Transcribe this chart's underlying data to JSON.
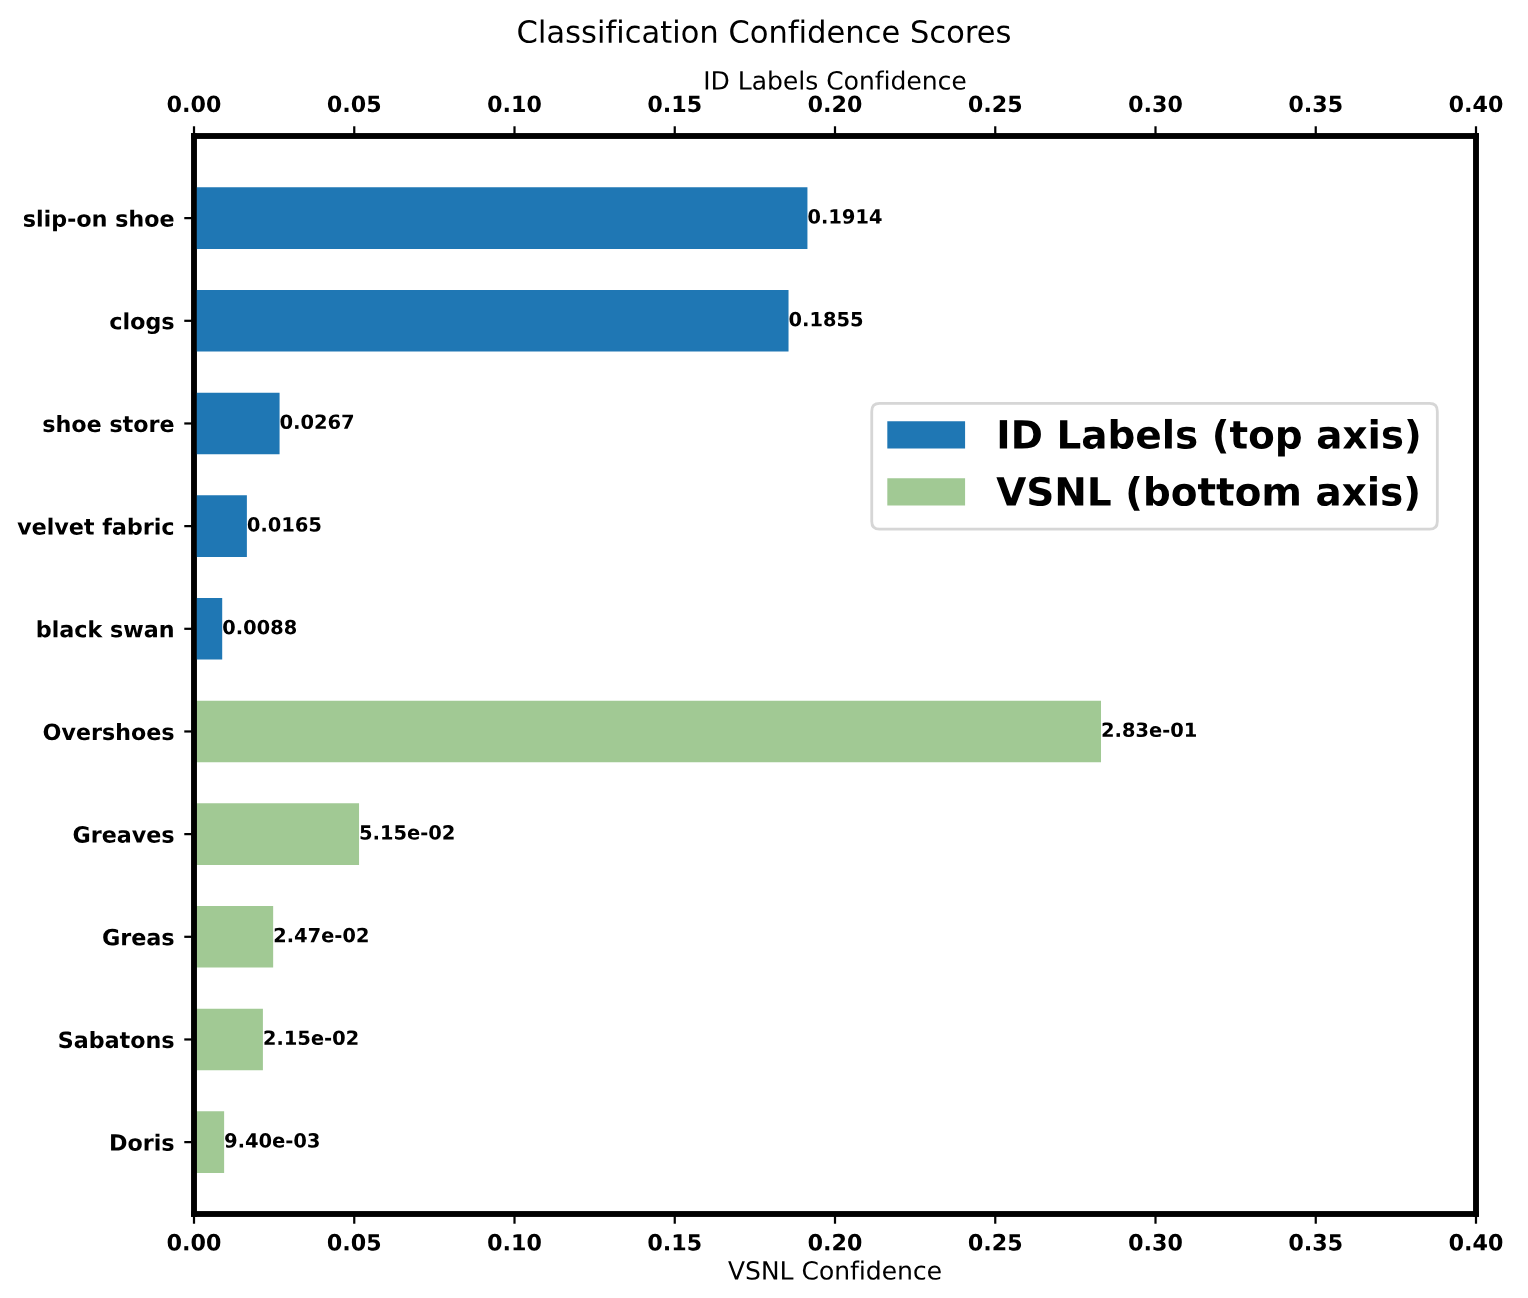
{
  "chart_data": {
    "type": "bar",
    "orientation": "horizontal",
    "title": "Classification Confidence Scores",
    "xlabel": "VSNL Confidence",
    "x2label": "ID Labels Confidence",
    "categories": [
      "slip-on shoe",
      "clogs",
      "shoe store",
      "velvet fabric",
      "black swan",
      "Overshoes",
      "Greaves",
      "Greas",
      "Sabatons",
      "Doris"
    ],
    "series": [
      {
        "name": "ID Labels (top axis)",
        "color": "#1f77b4",
        "axis": "x2",
        "values": [
          0.1914,
          0.1855,
          0.0267,
          0.0165,
          0.0088,
          null,
          null,
          null,
          null,
          null
        ],
        "value_labels": [
          "0.1914",
          "0.1855",
          "0.0267",
          "0.0165",
          "0.0088",
          null,
          null,
          null,
          null,
          null
        ]
      },
      {
        "name": "VSNL (bottom axis)",
        "color": "#a1c994",
        "values": [
          null,
          null,
          null,
          null,
          null,
          0.283,
          0.0515,
          0.0247,
          0.0215,
          0.0094
        ],
        "value_labels": [
          null,
          null,
          null,
          null,
          null,
          "2.83e-01",
          "5.15e-02",
          "2.47e-02",
          "2.15e-02",
          "9.40e-03"
        ]
      }
    ],
    "xlim": [
      0,
      0.4
    ],
    "xticks": [
      {
        "value": 0,
        "label": "0.00"
      },
      0.05,
      {
        "value": 0.1,
        "label": "0.10"
      },
      0.15,
      {
        "value": 0.2,
        "label": "0.20"
      },
      0.25,
      {
        "value": 0.3,
        "label": "0.30"
      },
      0.35,
      {
        "value": 0.4,
        "label": "0.40"
      }
    ],
    "x2lim": [
      0,
      0.4
    ],
    "x2ticks": [
      {
        "value": 0,
        "label": "0.00"
      },
      0.05,
      {
        "value": 0.1,
        "label": "0.10"
      },
      0.15,
      {
        "value": 0.2,
        "label": "0.20"
      },
      0.25,
      {
        "value": 0.3,
        "label": "0.30"
      },
      0.35,
      {
        "value": 0.4,
        "label": "0.40"
      }
    ],
    "legend": "top right",
    "grid": false
  }
}
